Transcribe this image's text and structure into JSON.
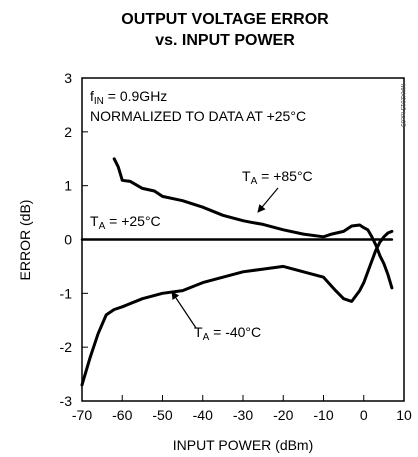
{
  "chart_data": {
    "type": "line",
    "title": "OUTPUT VOLTAGE ERROR",
    "subtitle": "vs. INPUT POWER",
    "xlabel": "INPUT POWER (dBm)",
    "ylabel": "ERROR (dB)",
    "xlim": [
      -70,
      10
    ],
    "ylim": [
      -3,
      3
    ],
    "xticks": [
      "-70",
      "-60",
      "-50",
      "-40",
      "-30",
      "-20",
      "-10",
      "0",
      "10"
    ],
    "yticks": [
      "3",
      "2",
      "1",
      "0",
      "-1",
      "-2",
      "-3"
    ],
    "grid": false,
    "conditions": {
      "line1_main": "f",
      "line1_sub": "IN",
      "line1_rest": " = 0.9GHz",
      "line2": "NORMALIZED TO DATA AT +25°C"
    },
    "watermark": "MAX2015 toc05",
    "series": [
      {
        "name": "+85°C",
        "label_prefix": "T",
        "label_sub": "A",
        "label_rest": " = +85°C",
        "x": [
          -62,
          -61,
          -60,
          -58,
          -55,
          -52,
          -50,
          -45,
          -40,
          -35,
          -30,
          -28,
          -25,
          -20,
          -15,
          -10,
          -8,
          -5,
          -3,
          -1,
          0,
          1,
          2,
          3,
          4,
          5,
          6,
          7
        ],
        "y": [
          1.5,
          1.35,
          1.1,
          1.08,
          0.95,
          0.9,
          0.8,
          0.72,
          0.6,
          0.45,
          0.35,
          0.32,
          0.28,
          0.18,
          0.1,
          0.05,
          0.1,
          0.15,
          0.25,
          0.27,
          0.22,
          0.18,
          0.05,
          -0.1,
          -0.3,
          -0.45,
          -0.65,
          -0.9
        ]
      },
      {
        "name": "+25°C",
        "label_prefix": "T",
        "label_sub": "A",
        "label_rest": " = +25°C",
        "x": [
          -70,
          7
        ],
        "y": [
          0,
          0
        ]
      },
      {
        "name": "-40°C",
        "label_prefix": "T",
        "label_sub": "A",
        "label_rest": " = -40°C",
        "x": [
          -70,
          -68,
          -66,
          -64,
          -62,
          -60,
          -55,
          -50,
          -45,
          -40,
          -35,
          -30,
          -25,
          -20,
          -15,
          -10,
          -7,
          -5,
          -3,
          -1,
          0,
          1,
          2,
          3,
          4,
          5,
          6,
          7
        ],
        "y": [
          -2.7,
          -2.2,
          -1.75,
          -1.4,
          -1.3,
          -1.25,
          -1.1,
          -1.0,
          -0.95,
          -0.8,
          -0.7,
          -0.6,
          -0.55,
          -0.5,
          -0.6,
          -0.7,
          -0.95,
          -1.1,
          -1.15,
          -0.95,
          -0.8,
          -0.6,
          -0.4,
          -0.2,
          -0.05,
          0.05,
          0.12,
          0.15
        ]
      }
    ]
  }
}
